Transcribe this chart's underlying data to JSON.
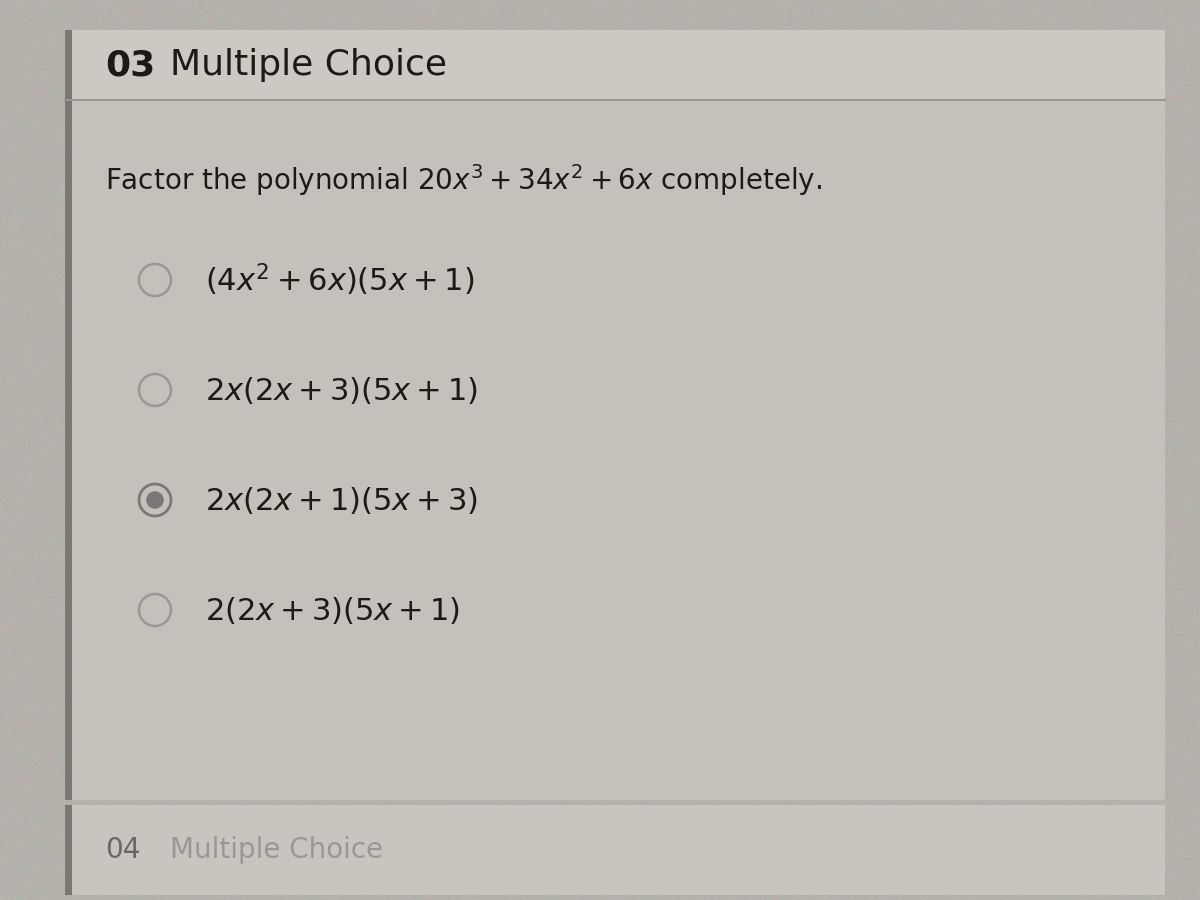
{
  "title_number": "03",
  "title_text": "Multiple Choice",
  "question_plain": "Factor the polynomial ",
  "question_math": "$20x^3 + 34x^2 + 6x$",
  "question_end": " completely.",
  "options": [
    {
      "text_plain": "$(4x^2 + 6x)(5x + 1)$",
      "selected": false
    },
    {
      "text_plain": "$2x(2x + 3)(5x + 1)$",
      "selected": false
    },
    {
      "text_plain": "$2x(2x + 1)(5x + 3)$",
      "selected": true
    },
    {
      "text_plain": "$2(2x + 3)(5x + 1)$",
      "selected": false
    }
  ],
  "footer_number": "04",
  "footer_text": "Multiple Choice",
  "bg_color": "#b5b2ab",
  "main_card_color": "#c4c1bb",
  "header_color": "#ccc9c3",
  "footer_card_color": "#c8c5bf",
  "divider_color": "#9a9790",
  "left_border_color": "#7a7870",
  "title_fontsize": 26,
  "question_fontsize": 20,
  "option_fontsize": 22,
  "footer_fontsize": 20,
  "text_color": "#1c1a18",
  "circle_edge_color": "#9a9896",
  "selected_fill_color": "#7a7876",
  "footer_num_color": "#6a6864",
  "footer_text_color": "#9a9896"
}
